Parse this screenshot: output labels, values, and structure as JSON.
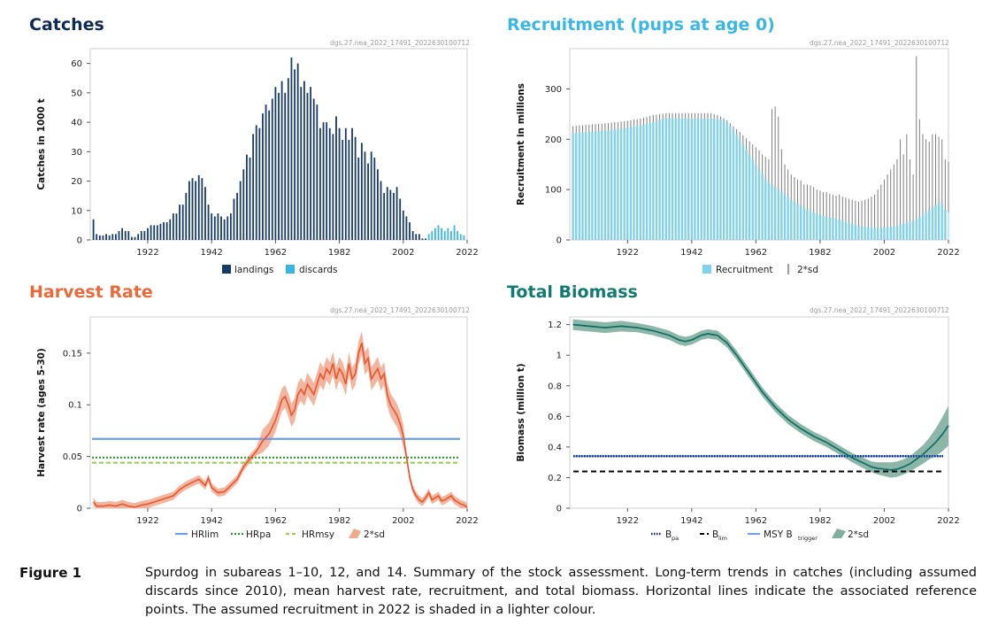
{
  "colors": {
    "catches_title": "#0f2a55",
    "recruitment_title": "#3ab7e3",
    "harvest_title": "#eb6a3c",
    "biomass_title": "#127a72",
    "landings": "#163a6b",
    "discards": "#38b6e3",
    "recruitment_bar": "#7fd3ec",
    "recruitment_light": "#c9ebf6",
    "sd_line": "#7d7d7d",
    "harvest_line": "#e8552b",
    "harvest_band": "#f0a88f",
    "hrlim": "#6d9eea",
    "hrpa": "#2f9a2f",
    "hrmsy": "#9bd05a",
    "biomass_line": "#0f6d63",
    "biomass_band": "#7fae9f",
    "bpa": "#0a2a6e",
    "blim": "#000000",
    "msy": "#6d9eea"
  },
  "caption": {
    "label": "Figure 1",
    "text": "Spurdog in subareas 1–10, 12, and 14. Summary of the stock assessment. Long-term trends in catches (including assumed discards since 2010), mean harvest rate, recruitment, and total biomass. Horizontal lines indicate the associated reference points. The assumed recruitment in 2022 is shaded in a lighter colour."
  },
  "chart_data": [
    {
      "id": "catches",
      "type": "bar",
      "title": "Catches",
      "source_code": "dgs.27.nea_2022_17491_2022630100712",
      "ylabel": "Catches in 1000 t",
      "xlabel": "",
      "xlim": [
        1904,
        2022
      ],
      "ylim": [
        0,
        65
      ],
      "xticks": [
        1922,
        1942,
        1962,
        1982,
        2002,
        2022
      ],
      "yticks": [
        0,
        10,
        20,
        30,
        40,
        50,
        60
      ],
      "legend": "bottom",
      "series": [
        {
          "name": "landings",
          "x": [
            1905,
            1906,
            1907,
            1908,
            1909,
            1910,
            1911,
            1912,
            1913,
            1914,
            1915,
            1916,
            1917,
            1918,
            1919,
            1920,
            1921,
            1922,
            1923,
            1924,
            1925,
            1926,
            1927,
            1928,
            1929,
            1930,
            1931,
            1932,
            1933,
            1934,
            1935,
            1936,
            1937,
            1938,
            1939,
            1940,
            1941,
            1942,
            1943,
            1944,
            1945,
            1946,
            1947,
            1948,
            1949,
            1950,
            1951,
            1952,
            1953,
            1954,
            1955,
            1956,
            1957,
            1958,
            1959,
            1960,
            1961,
            1962,
            1963,
            1964,
            1965,
            1966,
            1967,
            1968,
            1969,
            1970,
            1971,
            1972,
            1973,
            1974,
            1975,
            1976,
            1977,
            1978,
            1979,
            1980,
            1981,
            1982,
            1983,
            1984,
            1985,
            1986,
            1987,
            1988,
            1989,
            1990,
            1991,
            1992,
            1993,
            1994,
            1995,
            1996,
            1997,
            1998,
            1999,
            2000,
            2001,
            2002,
            2003,
            2004,
            2005,
            2006,
            2007,
            2008,
            2009,
            2010,
            2011,
            2012,
            2013,
            2014,
            2015,
            2016,
            2017,
            2018,
            2019,
            2020,
            2021
          ],
          "values": [
            7,
            2,
            1.5,
            1.5,
            2,
            1.5,
            2,
            2,
            3,
            4,
            3,
            3,
            1,
            1,
            2,
            3,
            3,
            4,
            5,
            5,
            5,
            5.5,
            6,
            6,
            7,
            9,
            9,
            12,
            12,
            16,
            20,
            21,
            20,
            22,
            21,
            18,
            12,
            9,
            8,
            9,
            8,
            7,
            8,
            9,
            14,
            16,
            20,
            24,
            29,
            28,
            36,
            39,
            38,
            43,
            46,
            44,
            48,
            52,
            50,
            54,
            50,
            55,
            62,
            58,
            60,
            52,
            54,
            50,
            52,
            48,
            46,
            38,
            40,
            40,
            38,
            36,
            42,
            38,
            34,
            38,
            34,
            38,
            35,
            28,
            33,
            30,
            26,
            30,
            28,
            24,
            20,
            16,
            18,
            17,
            16,
            18,
            14,
            10,
            8,
            6,
            3,
            2,
            2,
            0.5,
            0.5,
            0,
            0,
            0,
            0,
            0,
            0,
            0,
            0,
            0,
            0,
            0,
            0
          ],
          "color_key": "landings"
        },
        {
          "name": "discards",
          "x": [
            2010,
            2011,
            2012,
            2013,
            2014,
            2015,
            2016,
            2017,
            2018,
            2019,
            2020,
            2021
          ],
          "values": [
            2,
            3,
            4,
            5,
            4,
            3,
            4,
            3,
            5,
            3,
            2,
            1.5
          ],
          "color_key": "discards"
        }
      ]
    },
    {
      "id": "recruitment",
      "type": "bar",
      "title": "Recruitment (pups at age 0)",
      "source_code": "dgs.27.nea_2022_17491_2022630100712",
      "ylabel": "Recruitment in millions",
      "xlabel": "",
      "xlim": [
        1904,
        2022
      ],
      "ylim": [
        0,
        380
      ],
      "xticks": [
        1922,
        1942,
        1962,
        1982,
        2002,
        2022
      ],
      "yticks": [
        0,
        100,
        200,
        300
      ],
      "legend": "bottom",
      "series": [
        {
          "name": "Recruitment",
          "x_start": 1905,
          "x_end": 2022,
          "values": [
            212,
            213,
            213,
            214,
            214,
            215,
            215,
            216,
            216,
            217,
            217,
            218,
            218,
            219,
            220,
            221,
            222,
            223,
            224,
            225,
            226,
            227,
            229,
            230,
            232,
            234,
            236,
            238,
            240,
            241,
            242,
            242,
            242,
            242,
            242,
            242,
            241,
            241,
            241,
            241,
            241,
            241,
            241,
            241,
            240,
            240,
            239,
            237,
            233,
            226,
            218,
            210,
            200,
            190,
            180,
            170,
            160,
            150,
            140,
            130,
            120,
            115,
            110,
            105,
            100,
            95,
            90,
            85,
            80,
            76,
            72,
            68,
            64,
            60,
            58,
            55,
            52,
            50,
            48,
            46,
            45,
            44,
            42,
            40,
            38,
            36,
            34,
            32,
            30,
            28,
            27,
            26,
            25,
            25,
            24,
            24,
            24,
            25,
            25,
            26,
            27,
            28,
            30,
            32,
            34,
            36,
            38,
            40,
            45,
            50,
            55,
            60,
            65,
            70,
            75,
            70,
            60,
            55
          ],
          "sd": [
            226,
            227,
            228,
            228,
            229,
            229,
            230,
            230,
            231,
            231,
            232,
            232,
            233,
            234,
            234,
            235,
            236,
            237,
            238,
            239,
            240,
            241,
            243,
            244,
            246,
            248,
            249,
            250,
            251,
            252,
            252,
            252,
            252,
            252,
            252,
            252,
            252,
            252,
            252,
            252,
            252,
            252,
            252,
            252,
            250,
            248,
            245,
            242,
            238,
            232,
            226,
            220,
            215,
            208,
            202,
            196,
            190,
            184,
            178,
            170,
            165,
            160,
            260,
            265,
            245,
            180,
            150,
            140,
            130,
            125,
            120,
            118,
            110,
            110,
            108,
            105,
            100,
            98,
            95,
            95,
            92,
            90,
            88,
            90,
            86,
            84,
            82,
            80,
            78,
            76,
            78,
            80,
            82,
            86,
            90,
            100,
            110,
            120,
            130,
            140,
            150,
            160,
            200,
            170,
            210,
            160,
            130,
            365,
            240,
            210,
            200,
            195,
            210,
            210,
            205,
            200,
            160,
            155
          ],
          "color_key": "recruitment_bar",
          "last_light": true
        },
        {
          "name": "2*sd",
          "color_key": "sd_line"
        }
      ]
    },
    {
      "id": "harvest",
      "type": "line",
      "title": "Harvest Rate",
      "source_code": "dgs.27.nea_2022_17491_2022630100712",
      "ylabel": "Harvest rate (ages 5-30)",
      "xlabel": "",
      "xlim": [
        1904,
        2022
      ],
      "ylim": [
        0,
        0.185
      ],
      "xticks": [
        1922,
        1942,
        1962,
        1982,
        2002,
        2022
      ],
      "yticks": [
        0,
        0.05,
        0.1,
        0.15
      ],
      "ytick_labels": [
        "0",
        "0.05",
        "0.1",
        "0.15"
      ],
      "legend": "bottom",
      "x": [
        1905,
        1906,
        1908,
        1910,
        1912,
        1914,
        1916,
        1918,
        1920,
        1922,
        1924,
        1926,
        1928,
        1930,
        1932,
        1934,
        1936,
        1938,
        1940,
        1941,
        1942,
        1944,
        1946,
        1948,
        1950,
        1952,
        1954,
        1956,
        1958,
        1960,
        1962,
        1963,
        1964,
        1965,
        1966,
        1967,
        1968,
        1969,
        1970,
        1971,
        1972,
        1973,
        1974,
        1975,
        1976,
        1977,
        1978,
        1979,
        1980,
        1981,
        1982,
        1983,
        1984,
        1985,
        1986,
        1987,
        1988,
        1989,
        1990,
        1991,
        1992,
        1993,
        1994,
        1995,
        1996,
        1997,
        1998,
        1999,
        2000,
        2001,
        2002,
        2003,
        2004,
        2005,
        2006,
        2007,
        2008,
        2009,
        2010,
        2011,
        2012,
        2013,
        2014,
        2015,
        2016,
        2017,
        2018,
        2019,
        2020,
        2021,
        2022
      ],
      "values": [
        0.006,
        0.002,
        0.002,
        0.003,
        0.002,
        0.004,
        0.002,
        0.001,
        0.003,
        0.004,
        0.006,
        0.008,
        0.01,
        0.012,
        0.018,
        0.022,
        0.025,
        0.028,
        0.022,
        0.029,
        0.02,
        0.015,
        0.016,
        0.022,
        0.028,
        0.04,
        0.048,
        0.055,
        0.065,
        0.072,
        0.085,
        0.095,
        0.105,
        0.108,
        0.1,
        0.09,
        0.095,
        0.11,
        0.115,
        0.11,
        0.12,
        0.115,
        0.11,
        0.12,
        0.13,
        0.125,
        0.135,
        0.13,
        0.14,
        0.125,
        0.135,
        0.13,
        0.12,
        0.14,
        0.125,
        0.13,
        0.15,
        0.16,
        0.14,
        0.145,
        0.125,
        0.13,
        0.135,
        0.125,
        0.13,
        0.11,
        0.1,
        0.095,
        0.09,
        0.082,
        0.07,
        0.05,
        0.03,
        0.018,
        0.012,
        0.008,
        0.006,
        0.01,
        0.015,
        0.008,
        0.01,
        0.012,
        0.007,
        0.008,
        0.01,
        0.012,
        0.008,
        0.006,
        0.004,
        0.003,
        0.001
      ],
      "band_halfwidth": 0.008,
      "reference_lines": [
        {
          "name": "HRlim",
          "value": 0.067,
          "style": "solid",
          "color_key": "hrlim"
        },
        {
          "name": "HRpa",
          "value": 0.049,
          "style": "dotted",
          "color_key": "hrpa"
        },
        {
          "name": "HRmsy",
          "value": 0.044,
          "style": "dashed",
          "color_key": "hrmsy"
        }
      ],
      "legend_entries": [
        "HRlim",
        "HRpa",
        "HRmsy",
        "2*sd"
      ]
    },
    {
      "id": "biomass",
      "type": "line",
      "title": "Total Biomass",
      "source_code": "dgs.27.nea_2022_17491_2022630100712",
      "ylabel": "Biomass (million t)",
      "xlabel": "",
      "xlim": [
        1904,
        2022
      ],
      "ylim": [
        0,
        1.25
      ],
      "xticks": [
        1922,
        1942,
        1962,
        1982,
        2002,
        2022
      ],
      "yticks": [
        0,
        0.2,
        0.4,
        0.6,
        0.8,
        1,
        1.2
      ],
      "ytick_labels": [
        "0",
        "0.2",
        "0.4",
        "0.6",
        "0.8",
        "1",
        "1.2"
      ],
      "legend": "bottom",
      "x": [
        1905,
        1910,
        1915,
        1920,
        1925,
        1930,
        1935,
        1938,
        1940,
        1942,
        1945,
        1947,
        1950,
        1953,
        1956,
        1960,
        1964,
        1968,
        1972,
        1976,
        1980,
        1984,
        1988,
        1992,
        1996,
        1998,
        2000,
        2002,
        2004,
        2006,
        2008,
        2010,
        2012,
        2014,
        2016,
        2018,
        2020,
        2022
      ],
      "values": [
        1.2,
        1.19,
        1.18,
        1.19,
        1.18,
        1.16,
        1.13,
        1.1,
        1.09,
        1.1,
        1.13,
        1.14,
        1.13,
        1.08,
        1.0,
        0.88,
        0.76,
        0.66,
        0.58,
        0.52,
        0.47,
        0.43,
        0.38,
        0.33,
        0.29,
        0.27,
        0.26,
        0.255,
        0.25,
        0.255,
        0.27,
        0.29,
        0.32,
        0.35,
        0.39,
        0.43,
        0.48,
        0.54
      ],
      "band_halfwidth": [
        0.035,
        0.035,
        0.035,
        0.035,
        0.03,
        0.03,
        0.03,
        0.03,
        0.03,
        0.03,
        0.03,
        0.03,
        0.03,
        0.03,
        0.03,
        0.03,
        0.03,
        0.03,
        0.03,
        0.03,
        0.03,
        0.03,
        0.03,
        0.03,
        0.035,
        0.035,
        0.04,
        0.045,
        0.05,
        0.05,
        0.05,
        0.05,
        0.055,
        0.06,
        0.07,
        0.09,
        0.11,
        0.13
      ],
      "reference_lines": [
        {
          "name": "Bpa",
          "value": 0.34,
          "style": "dotted",
          "color_key": "bpa"
        },
        {
          "name": "Blim",
          "value": 0.24,
          "style": "dashed",
          "color_key": "blim"
        },
        {
          "name": "MSY Btrigger",
          "value": 0.34,
          "style": "solid",
          "color_key": "msy"
        }
      ],
      "legend_entries": [
        {
          "main": "B",
          "sub": "pa"
        },
        {
          "main": "B",
          "sub": "lim"
        },
        {
          "main": "MSY B",
          "sub": "trigger"
        },
        {
          "main": "2*sd",
          "sub": ""
        }
      ]
    }
  ]
}
